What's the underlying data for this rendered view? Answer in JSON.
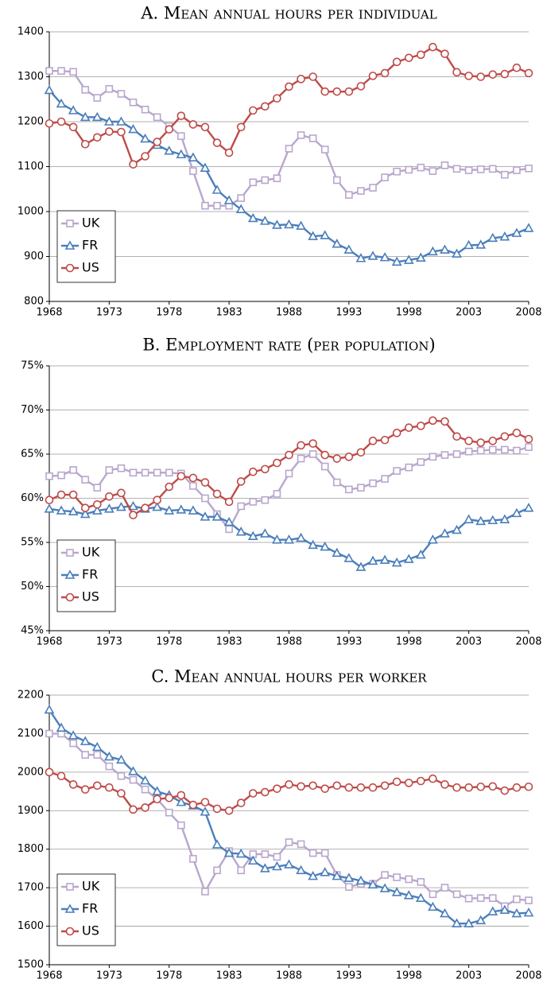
{
  "chart_data": [
    {
      "type": "line",
      "title": "A. Mean annual hours per individual",
      "x": [
        1968,
        1969,
        1970,
        1971,
        1972,
        1973,
        1974,
        1975,
        1976,
        1977,
        1978,
        1979,
        1980,
        1981,
        1982,
        1983,
        1984,
        1985,
        1986,
        1987,
        1988,
        1989,
        1990,
        1991,
        1992,
        1993,
        1994,
        1995,
        1996,
        1997,
        1998,
        1999,
        2000,
        2001,
        2002,
        2003,
        2004,
        2005,
        2006,
        2007,
        2008
      ],
      "xlim": [
        1968,
        2008
      ],
      "xticks": [
        1968,
        1973,
        1978,
        1983,
        1988,
        1993,
        1998,
        2003,
        2008
      ],
      "ylim": [
        800,
        1400
      ],
      "yticks": [
        800,
        900,
        1000,
        1100,
        1200,
        1300,
        1400
      ],
      "grid": true,
      "legend": "lower left",
      "series": [
        {
          "name": "UK",
          "color": "#b9a6cc",
          "marker": "square",
          "values": [
            1313,
            1313,
            1311,
            1271,
            1253,
            1273,
            1262,
            1243,
            1227,
            1210,
            1190,
            1168,
            1090,
            1013,
            1013,
            1013,
            1030,
            1065,
            1070,
            1074,
            1140,
            1170,
            1163,
            1138,
            1070,
            1037,
            1046,
            1053,
            1076,
            1089,
            1093,
            1098,
            1090,
            1103,
            1095,
            1092,
            1094,
            1095,
            1082,
            1092,
            1096
          ]
        },
        {
          "name": "FR",
          "color": "#4a7ebb",
          "marker": "triangle",
          "values": [
            1270,
            1240,
            1225,
            1210,
            1210,
            1200,
            1200,
            1183,
            1162,
            1148,
            1135,
            1127,
            1120,
            1097,
            1048,
            1025,
            1005,
            985,
            979,
            970,
            971,
            968,
            945,
            947,
            928,
            915,
            896,
            901,
            898,
            888,
            892,
            897,
            911,
            915,
            906,
            925,
            926,
            941,
            944,
            952,
            963
          ]
        },
        {
          "name": "US",
          "color": "#be4b48",
          "marker": "circle",
          "values": [
            1196,
            1200,
            1188,
            1150,
            1165,
            1178,
            1177,
            1105,
            1123,
            1155,
            1183,
            1213,
            1194,
            1188,
            1153,
            1131,
            1188,
            1225,
            1234,
            1252,
            1278,
            1295,
            1300,
            1267,
            1267,
            1267,
            1279,
            1302,
            1308,
            1333,
            1342,
            1349,
            1366,
            1351,
            1310,
            1302,
            1300,
            1305,
            1306,
            1320,
            1308
          ]
        }
      ]
    },
    {
      "type": "line",
      "title": "B. Employment rate (per population)",
      "x": [
        1968,
        1969,
        1970,
        1971,
        1972,
        1973,
        1974,
        1975,
        1976,
        1977,
        1978,
        1979,
        1980,
        1981,
        1982,
        1983,
        1984,
        1985,
        1986,
        1987,
        1988,
        1989,
        1990,
        1991,
        1992,
        1993,
        1994,
        1995,
        1996,
        1997,
        1998,
        1999,
        2000,
        2001,
        2002,
        2003,
        2004,
        2005,
        2006,
        2007,
        2008
      ],
      "xlim": [
        1968,
        2008
      ],
      "xticks": [
        1968,
        1973,
        1978,
        1983,
        1988,
        1993,
        1998,
        2003,
        2008
      ],
      "ylim": [
        45,
        75
      ],
      "yticks": [
        {
          "value": 45,
          "label": "45%"
        },
        {
          "value": 50,
          "label": "50%"
        },
        {
          "value": 55,
          "label": "55%"
        },
        {
          "value": 60,
          "label": "60%"
        },
        {
          "value": 65,
          "label": "65%"
        },
        {
          "value": 70,
          "label": "70%"
        },
        {
          "value": 75,
          "label": "75%"
        }
      ],
      "grid": true,
      "legend": "lower left",
      "series": [
        {
          "name": "UK",
          "color": "#b9a6cc",
          "marker": "square",
          "values": [
            62.5,
            62.6,
            63.2,
            62.1,
            61.2,
            63.2,
            63.4,
            62.9,
            62.9,
            62.9,
            62.9,
            62.8,
            61.4,
            60.0,
            58.2,
            56.5,
            59.1,
            59.6,
            59.8,
            60.5,
            62.8,
            64.5,
            65.0,
            63.6,
            61.8,
            61.0,
            61.2,
            61.7,
            62.2,
            63.1,
            63.5,
            64.1,
            64.7,
            64.9,
            65.0,
            65.3,
            65.4,
            65.5,
            65.5,
            65.4,
            65.8
          ]
        },
        {
          "name": "FR",
          "color": "#4a7ebb",
          "marker": "triangle",
          "values": [
            58.8,
            58.6,
            58.5,
            58.2,
            58.6,
            58.8,
            59.0,
            59.1,
            58.8,
            59.0,
            58.6,
            58.7,
            58.6,
            57.9,
            57.9,
            57.3,
            56.2,
            55.7,
            56.0,
            55.3,
            55.3,
            55.5,
            54.7,
            54.5,
            53.8,
            53.2,
            52.2,
            52.9,
            53.0,
            52.7,
            53.1,
            53.6,
            55.3,
            56.0,
            56.4,
            57.6,
            57.4,
            57.5,
            57.6,
            58.3,
            58.9
          ]
        },
        {
          "name": "US",
          "color": "#be4b48",
          "marker": "circle",
          "values": [
            59.8,
            60.4,
            60.4,
            58.9,
            59.3,
            60.2,
            60.6,
            58.1,
            58.9,
            59.8,
            61.3,
            62.5,
            62.3,
            61.8,
            60.5,
            59.6,
            61.9,
            63.0,
            63.3,
            64.0,
            64.9,
            66.0,
            66.2,
            64.9,
            64.5,
            64.7,
            65.2,
            66.5,
            66.6,
            67.4,
            68.0,
            68.2,
            68.8,
            68.7,
            67.0,
            66.5,
            66.3,
            66.5,
            67.0,
            67.4,
            66.7
          ]
        }
      ]
    },
    {
      "type": "line",
      "title": "C. Mean annual hours per worker",
      "x": [
        1968,
        1969,
        1970,
        1971,
        1972,
        1973,
        1974,
        1975,
        1976,
        1977,
        1978,
        1979,
        1980,
        1981,
        1982,
        1983,
        1984,
        1985,
        1986,
        1987,
        1988,
        1989,
        1990,
        1991,
        1992,
        1993,
        1994,
        1995,
        1996,
        1997,
        1998,
        1999,
        2000,
        2001,
        2002,
        2003,
        2004,
        2005,
        2006,
        2007,
        2008
      ],
      "xlim": [
        1968,
        2008
      ],
      "xticks": [
        1968,
        1973,
        1978,
        1983,
        1988,
        1993,
        1998,
        2003,
        2008
      ],
      "ylim": [
        1500,
        2200
      ],
      "yticks": [
        1500,
        1600,
        1700,
        1800,
        1900,
        2000,
        2100,
        2200
      ],
      "grid": true,
      "legend": "lower left",
      "series": [
        {
          "name": "UK",
          "color": "#b9a6cc",
          "marker": "square",
          "values": [
            2100,
            2100,
            2075,
            2045,
            2045,
            2015,
            1990,
            1980,
            1955,
            1930,
            1895,
            1862,
            1775,
            1690,
            1745,
            1795,
            1745,
            1787,
            1787,
            1780,
            1818,
            1813,
            1790,
            1790,
            1733,
            1702,
            1710,
            1710,
            1733,
            1727,
            1722,
            1715,
            1683,
            1700,
            1683,
            1672,
            1673,
            1673,
            1652,
            1670,
            1667
          ]
        },
        {
          "name": "FR",
          "color": "#4a7ebb",
          "marker": "triangle",
          "values": [
            2162,
            2115,
            2095,
            2080,
            2065,
            2040,
            2032,
            2002,
            1978,
            1950,
            1940,
            1922,
            1913,
            1897,
            1812,
            1790,
            1788,
            1770,
            1750,
            1755,
            1760,
            1745,
            1730,
            1740,
            1730,
            1725,
            1718,
            1708,
            1698,
            1688,
            1680,
            1673,
            1650,
            1633,
            1607,
            1607,
            1615,
            1638,
            1642,
            1633,
            1635
          ]
        },
        {
          "name": "US",
          "color": "#be4b48",
          "marker": "circle",
          "values": [
            2000,
            1990,
            1968,
            1955,
            1965,
            1960,
            1945,
            1903,
            1908,
            1930,
            1933,
            1940,
            1915,
            1922,
            1905,
            1900,
            1920,
            1945,
            1948,
            1957,
            1968,
            1963,
            1965,
            1957,
            1965,
            1960,
            1960,
            1960,
            1965,
            1975,
            1972,
            1977,
            1983,
            1968,
            1960,
            1960,
            1962,
            1963,
            1952,
            1960,
            1962
          ]
        }
      ]
    }
  ]
}
